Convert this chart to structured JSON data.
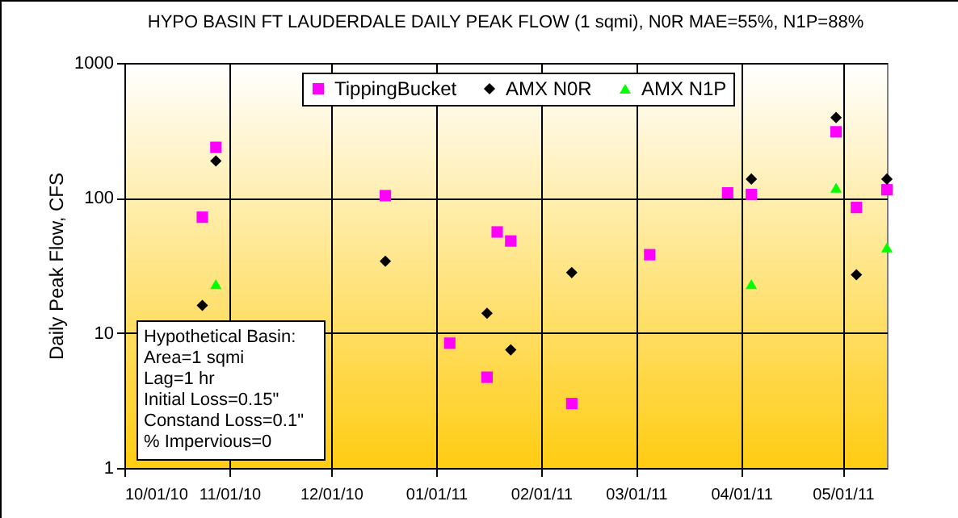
{
  "chart_data": {
    "type": "scatter",
    "title": "HYPO BASIN FT LAUDERDALE  DAILY PEAK FLOW (1 sqmi), N0R MAE=55%, N1P=88%",
    "ylabel": "Daily Peak Flow, CFS",
    "x": [
      "2010-10-24",
      "2010-10-28",
      "2010-12-17",
      "2011-01-05",
      "2011-01-16",
      "2011-01-19",
      "2011-01-23",
      "2011-02-10",
      "2011-03-05",
      "2011-03-28",
      "2011-04-04",
      "2011-04-29",
      "2011-05-05",
      "2011-05-14"
    ],
    "series": [
      {
        "name": "TippingBucket",
        "color": "#ff00ff",
        "marker": "square",
        "values": [
          72,
          237,
          104,
          8.4,
          4.7,
          56,
          48,
          3.0,
          38,
          109,
          106,
          309,
          85,
          115
        ]
      },
      {
        "name": "AMX N0R",
        "color": "#000000",
        "marker": "diamond",
        "values": [
          16,
          188,
          34,
          null,
          14,
          null,
          7.5,
          28,
          null,
          null,
          138,
          394,
          27,
          138
        ]
      },
      {
        "name": "AMX N1P",
        "color": "#00ff00",
        "marker": "triangle",
        "values": [
          null,
          23,
          null,
          null,
          null,
          null,
          null,
          null,
          null,
          null,
          23,
          119,
          null,
          43
        ]
      }
    ],
    "xlim": [
      "2010-10-01",
      "2011-05-14"
    ],
    "xticks": [
      {
        "value": "2010-10-01",
        "label": "10/01/10"
      },
      {
        "value": "2010-11-01",
        "label": "11/01/10"
      },
      {
        "value": "2010-12-01",
        "label": "12/01/10"
      },
      {
        "value": "2011-01-01",
        "label": "01/01/11"
      },
      {
        "value": "2011-02-01",
        "label": "02/01/11"
      },
      {
        "value": "2011-03-01",
        "label": "03/01/11"
      },
      {
        "value": "2011-04-01",
        "label": "04/01/11"
      },
      {
        "value": "2011-05-01",
        "label": "05/01/11"
      }
    ],
    "ylim": [
      1,
      1000
    ],
    "yticks": [
      1,
      10,
      100,
      1000
    ],
    "log": true,
    "grid": true,
    "legend": "top",
    "annotations": [
      "Hypothetical Basin:",
      "Area=1 sqmi",
      "Lag=1 hr",
      "Initial Loss=0.15\"",
      "Constand Loss=0.1\"",
      "% Impervious=0"
    ]
  }
}
